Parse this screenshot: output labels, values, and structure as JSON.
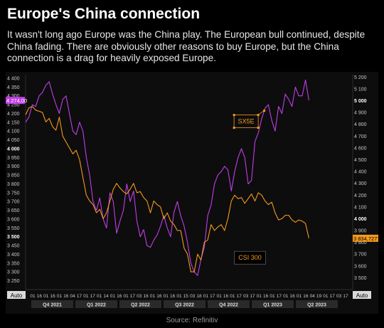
{
  "header": {
    "title": "Europe's China connection",
    "subtitle": "It wasn't long ago Europe was the China play. The European bull continued, despite China fading. There are obviously other reasons to buy Europe, but the China connection is a drag for heavily exposed Europe."
  },
  "footer": {
    "source": "Source: Refinitiv"
  },
  "colors": {
    "sx5e": "#c03ee8",
    "csi": "#f39a1e",
    "background": "#000000",
    "panel": "#0d0d0d",
    "axis_text": "#c8c8c8"
  },
  "chart_data": {
    "type": "line",
    "axis_buttons": {
      "left": "Auto",
      "right": "Auto"
    },
    "left_axis": {
      "ylim": [
        3200,
        4420
      ],
      "ticks": [
        "4 400",
        "4 350",
        "4 300",
        "4 250",
        "4 200",
        "4 150",
        "4 100",
        "4 050",
        "4 000",
        "3 950",
        "3 900",
        "3 850",
        "3 800",
        "3 750",
        "3 700",
        "3 650",
        "3 600",
        "3 550",
        "3 500",
        "3 450",
        "3 400",
        "3 350",
        "3 300",
        "3 250"
      ],
      "tick_values": [
        4400,
        4350,
        4300,
        4250,
        4200,
        4150,
        4100,
        4050,
        4000,
        3950,
        3900,
        3850,
        3800,
        3750,
        3700,
        3650,
        3600,
        3550,
        3500,
        3450,
        3400,
        3350,
        3300,
        3250
      ],
      "bold_ticks": [
        "4 000",
        "3 500"
      ],
      "last_value_label": "4 274,00",
      "last_value": 4274
    },
    "right_axis": {
      "ylim": [
        3400,
        5220
      ],
      "ticks": [
        "5 200",
        "5 100",
        "5 000",
        "4 900",
        "4 800",
        "4 700",
        "4 600",
        "4 500",
        "4 400",
        "4 300",
        "4 200",
        "4 100",
        "4 000",
        "3 900",
        "3 800",
        "3 700",
        "3 600",
        "3 500"
      ],
      "tick_values": [
        5200,
        5100,
        5000,
        4900,
        4800,
        4700,
        4600,
        4500,
        4400,
        4300,
        4200,
        4100,
        4000,
        3900,
        3800,
        3700,
        3600,
        3500
      ],
      "bold_ticks": [
        "5 000",
        "4 000"
      ],
      "last_value_label": "3 834,7277",
      "last_value": 3834.7277
    },
    "x_ticks": [
      "01",
      "16",
      "01",
      "16",
      "01",
      "16",
      "04",
      "17",
      "01",
      "17",
      "01",
      "14",
      "01",
      "16",
      "01",
      "17",
      "03",
      "16",
      "01",
      "16",
      "01",
      "16",
      "01",
      "15",
      "03",
      "18",
      "01",
      "17",
      "01",
      "16",
      "01",
      "17",
      "03",
      "17",
      "01",
      "16",
      "01",
      "17",
      "01",
      "16",
      "01",
      "16",
      "04",
      "19",
      "01",
      "17",
      "03",
      "17"
    ],
    "quarters": [
      "Q4 2021",
      "Q1 2022",
      "Q2 2022",
      "Q3 2022",
      "Q4 2022",
      "Q1 2023",
      "Q2 2023"
    ],
    "series": [
      {
        "name": "SX5E",
        "axis": "left",
        "x": [
          0,
          1,
          2,
          3,
          4,
          5,
          6,
          7,
          8,
          9,
          10,
          11,
          12,
          13,
          14,
          15,
          16,
          17,
          18,
          19,
          20,
          21,
          22,
          23,
          24,
          25,
          26,
          27,
          28,
          29,
          30,
          31,
          32,
          33,
          34,
          35,
          36,
          37,
          38,
          39,
          40,
          41,
          42,
          43,
          44,
          45,
          46,
          47,
          48,
          49,
          50,
          51,
          52,
          53,
          54,
          55,
          56,
          57,
          58,
          59,
          60,
          61,
          62,
          63,
          64,
          65,
          66,
          67,
          68,
          69,
          70,
          71,
          72,
          73,
          74,
          75,
          76,
          77,
          78,
          79,
          80,
          81,
          82,
          83,
          84
        ],
        "values": [
          4150,
          4180,
          4250,
          4240,
          4300,
          4320,
          4360,
          4380,
          4310,
          4250,
          4200,
          4280,
          4300,
          4200,
          4100,
          4080,
          4150,
          4100,
          3950,
          3850,
          3700,
          3650,
          3720,
          3600,
          3550,
          3750,
          3700,
          3520,
          3590,
          3650,
          3800,
          3700,
          3760,
          3590,
          3500,
          3540,
          3450,
          3440,
          3480,
          3510,
          3560,
          3620,
          3550,
          3500,
          3640,
          3700,
          3620,
          3560,
          3470,
          3350,
          3300,
          3280,
          3370,
          3440,
          3620,
          3680,
          3800,
          3850,
          3870,
          3900,
          3880,
          3760,
          3870,
          3950,
          4000,
          3950,
          3800,
          3820,
          4040,
          4090,
          4170,
          4230,
          4250,
          4160,
          4100,
          4240,
          4200,
          4310,
          4280,
          4240,
          4350,
          4300,
          4300,
          4390,
          4274
        ]
      },
      {
        "name": "CSI 300",
        "axis": "right",
        "x": [
          0,
          1,
          2,
          3,
          4,
          5,
          6,
          7,
          8,
          9,
          10,
          11,
          12,
          13,
          14,
          15,
          16,
          17,
          18,
          19,
          20,
          21,
          22,
          23,
          24,
          25,
          26,
          27,
          28,
          29,
          30,
          31,
          32,
          33,
          34,
          35,
          36,
          37,
          38,
          39,
          40,
          41,
          42,
          43,
          44,
          45,
          46,
          47,
          48,
          49,
          50,
          51,
          52,
          53,
          54,
          55,
          56,
          57,
          58,
          59,
          60,
          61,
          62,
          63,
          64,
          65,
          66,
          67,
          68,
          69,
          70,
          71,
          72,
          73,
          74,
          75,
          76,
          77,
          78,
          79,
          80,
          81,
          82,
          83,
          84
        ],
        "values": [
          4880,
          4940,
          4950,
          4920,
          4910,
          4900,
          4820,
          4850,
          4780,
          4750,
          4860,
          4700,
          4650,
          4600,
          4550,
          4580,
          4500,
          4350,
          4200,
          4150,
          4120,
          4050,
          4080,
          4000,
          4050,
          4150,
          4250,
          4300,
          4260,
          4230,
          4210,
          4250,
          4300,
          4220,
          4230,
          4180,
          4150,
          4050,
          4150,
          4120,
          4100,
          4000,
          4050,
          3980,
          3950,
          3900,
          3900,
          3750,
          3700,
          3550,
          3550,
          3700,
          3650,
          3800,
          3820,
          3950,
          3900,
          3930,
          3950,
          3900,
          4000,
          4150,
          4200,
          4170,
          4180,
          4130,
          4170,
          4210,
          4150,
          4220,
          4200,
          4150,
          4120,
          4140,
          4050,
          3990,
          4000,
          4030,
          4030,
          3990,
          3970,
          3990,
          3980,
          3960,
          3835
        ]
      }
    ],
    "annotations": [
      {
        "text": "SX5E",
        "series": "SX5E",
        "x": 63.5,
        "value": 4155,
        "axis": "left"
      },
      {
        "text": "CSI 300",
        "series": "CSI 300",
        "x": 64,
        "value": 3670,
        "axis": "right"
      }
    ]
  }
}
